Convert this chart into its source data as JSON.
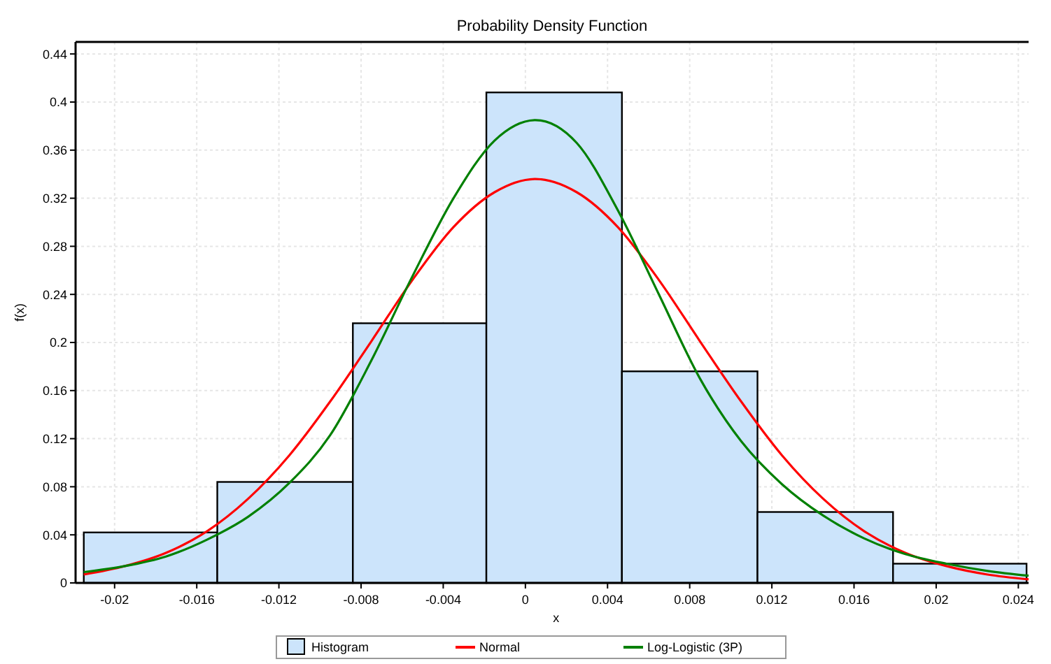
{
  "chart_data": {
    "type": "histogram",
    "title": "Probability Density Function",
    "xlabel": "x",
    "ylabel": "f(x)",
    "xlim": [
      -0.0219,
      0.0245
    ],
    "ylim": [
      0,
      0.45
    ],
    "xticks": [
      -0.02,
      -0.016,
      -0.012,
      -0.008,
      -0.004,
      0,
      0.004,
      0.008,
      0.012,
      0.016,
      0.02,
      0.024
    ],
    "yticks": [
      0,
      0.04,
      0.08,
      0.12,
      0.16,
      0.2,
      0.24,
      0.28,
      0.32,
      0.36,
      0.4,
      0.44
    ],
    "grid": true,
    "legend": "bottom",
    "series": [
      {
        "name": "Histogram",
        "color": "#cce4fb",
        "bins": [
          -0.0215,
          -0.015,
          -0.0084,
          -0.0019,
          0.0047,
          0.0113,
          0.0179,
          0.0244
        ],
        "values": [
          0.042,
          0.084,
          0.216,
          0.408,
          0.176,
          0.059,
          0.016
        ]
      },
      {
        "name": "Normal",
        "type": "line",
        "color": "#ff0000",
        "x": [
          -0.0215,
          -0.0195,
          -0.0175,
          -0.0155,
          -0.0135,
          -0.0115,
          -0.0095,
          -0.0075,
          -0.0055,
          -0.0035,
          -0.0015,
          0.0005,
          0.0025,
          0.0045,
          0.0065,
          0.0085,
          0.0105,
          0.0125,
          0.0145,
          0.0165,
          0.0185,
          0.0205,
          0.0225,
          0.0245
        ],
        "values": [
          0.007,
          0.014,
          0.025,
          0.043,
          0.07,
          0.106,
          0.151,
          0.201,
          0.252,
          0.296,
          0.325,
          0.336,
          0.325,
          0.296,
          0.252,
          0.201,
          0.151,
          0.106,
          0.07,
          0.043,
          0.025,
          0.014,
          0.007,
          0.003
        ]
      },
      {
        "name": "Log-Logistic (3P)",
        "type": "line",
        "color": "#008000",
        "x": [
          -0.0215,
          -0.0195,
          -0.0175,
          -0.0155,
          -0.0135,
          -0.0115,
          -0.0095,
          -0.0075,
          -0.0055,
          -0.0035,
          -0.0015,
          0.0005,
          0.0025,
          0.0045,
          0.0065,
          0.0085,
          0.0105,
          0.0125,
          0.0145,
          0.0165,
          0.0185,
          0.0205,
          0.0225,
          0.0245
        ],
        "values": [
          0.009,
          0.014,
          0.022,
          0.036,
          0.055,
          0.083,
          0.123,
          0.185,
          0.255,
          0.32,
          0.368,
          0.385,
          0.366,
          0.31,
          0.24,
          0.17,
          0.118,
          0.082,
          0.056,
          0.037,
          0.024,
          0.016,
          0.01,
          0.006
        ]
      }
    ]
  }
}
